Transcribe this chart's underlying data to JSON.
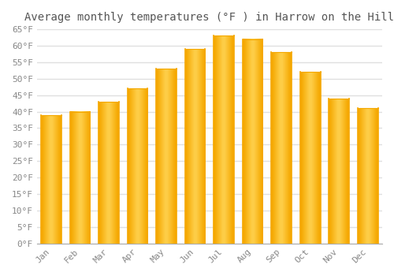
{
  "title": "Average monthly temperatures (°F ) in Harrow on the Hill",
  "months": [
    "Jan",
    "Feb",
    "Mar",
    "Apr",
    "May",
    "Jun",
    "Jul",
    "Aug",
    "Sep",
    "Oct",
    "Nov",
    "Dec"
  ],
  "values": [
    39.0,
    40.0,
    43.0,
    47.0,
    53.0,
    59.0,
    63.0,
    62.0,
    58.0,
    52.0,
    44.0,
    41.0
  ],
  "bar_color_center": "#FFD966",
  "bar_color_edge": "#F5A800",
  "ylim": [
    0,
    65
  ],
  "ytick_step": 5,
  "background_color": "#ffffff",
  "grid_color": "#e0e0e0",
  "title_fontsize": 10,
  "tick_fontsize": 8,
  "font_family": "monospace",
  "bar_width": 0.7
}
